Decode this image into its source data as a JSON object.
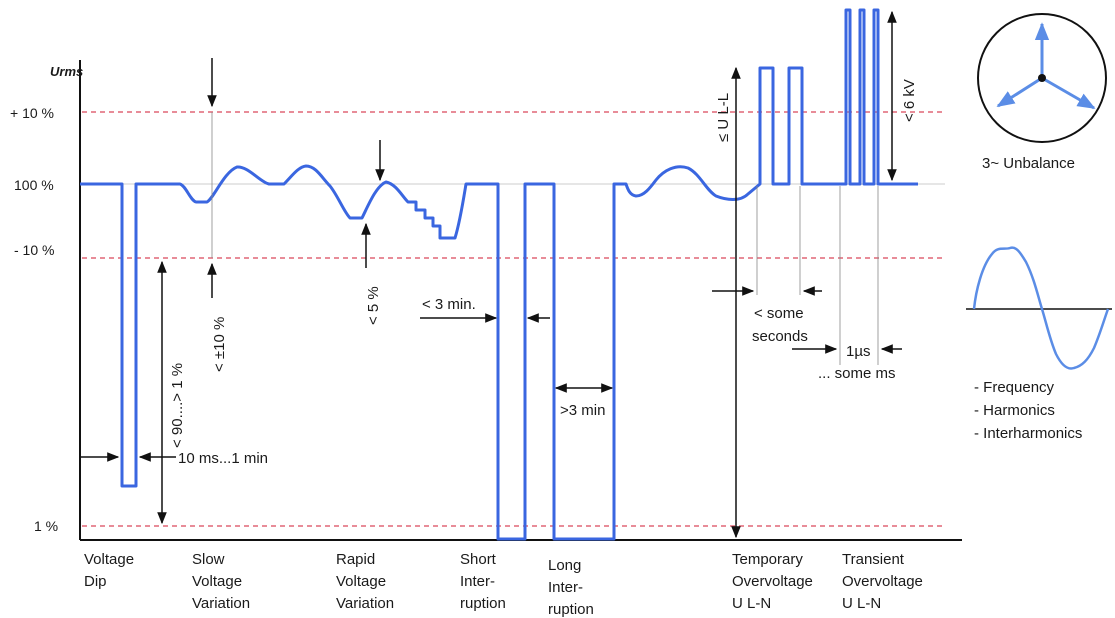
{
  "y_axis": {
    "title": "Urms",
    "ticks": {
      "plus10": "+ 10 %",
      "nominal": "100 %",
      "minus10": "- 10 %",
      "one": "1 %"
    }
  },
  "categories": [
    [
      "Voltage",
      "Dip"
    ],
    [
      "Slow",
      "Voltage",
      "Variation"
    ],
    [
      "Rapid",
      "Voltage",
      "Variation"
    ],
    [
      "Short",
      "Inter-",
      "ruption"
    ],
    [
      "Long",
      "Inter-",
      "ruption"
    ],
    [
      "Temporary",
      "Overvoltage",
      "U L-N"
    ],
    [
      "Transient",
      "Overvoltage",
      "U L-N"
    ]
  ],
  "annotations": {
    "dip_duration": "10 ms...1 min",
    "dip_depth": "< 90....> 1 %",
    "slow_variation": "< ±10 %",
    "rapid_variation": "< 5 %",
    "short_interruption": "< 3 min.",
    "long_interruption": ">3 min",
    "temporary_amplitude": "≤ U L-L",
    "temporary_duration_1": "< some",
    "temporary_duration_2": "seconds",
    "transient_amplitude": "< 6 kV",
    "transient_duration_1": "1µs",
    "transient_duration_2": "... some ms"
  },
  "side_panels": {
    "unbalance": "3~ Unbalance",
    "waveform_items": [
      "- Frequency",
      "- Harmonics",
      "- Interharmonics"
    ]
  },
  "colors": {
    "signal": "#3a66e0",
    "limit_lines": "#d9475a",
    "unbalance_arrows": "#5b8de6",
    "axis": "#111111"
  }
}
